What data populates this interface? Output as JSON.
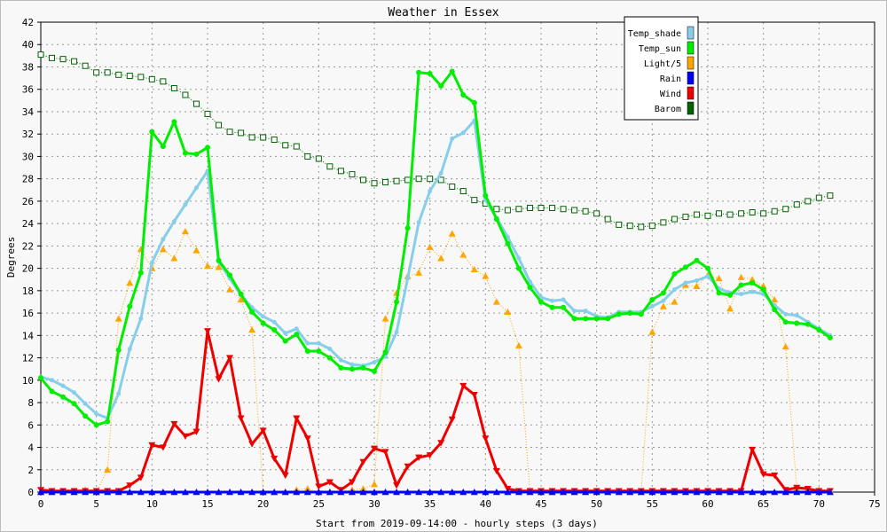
{
  "chart_data": {
    "type": "line",
    "title": "Weather in Essex",
    "xlabel": "Start from 2019-09-14:00 - hourly steps (3 days)",
    "ylabel": "Degrees",
    "xlim": [
      0,
      75
    ],
    "ylim": [
      0,
      42
    ],
    "x_ticks": [
      0,
      5,
      10,
      15,
      20,
      25,
      30,
      35,
      40,
      45,
      50,
      55,
      60,
      65,
      70,
      75
    ],
    "y_ticks": [
      0,
      2,
      4,
      6,
      8,
      10,
      12,
      14,
      16,
      18,
      20,
      22,
      24,
      26,
      28,
      30,
      32,
      34,
      36,
      38,
      40,
      42
    ],
    "grid": true,
    "legend_position": "top-right",
    "x": [
      0,
      1,
      2,
      3,
      4,
      5,
      6,
      7,
      8,
      9,
      10,
      11,
      12,
      13,
      14,
      15,
      16,
      17,
      18,
      19,
      20,
      21,
      22,
      23,
      24,
      25,
      26,
      27,
      28,
      29,
      30,
      31,
      32,
      33,
      34,
      35,
      36,
      37,
      38,
      39,
      40,
      41,
      42,
      43,
      44,
      45,
      46,
      47,
      48,
      49,
      50,
      51,
      52,
      53,
      54,
      55,
      56,
      57,
      58,
      59,
      60,
      61,
      62,
      63,
      64,
      65,
      66,
      67,
      68,
      69,
      70,
      71
    ],
    "series": [
      {
        "name": "Temp_shade",
        "color": "#87ceeb",
        "values": [
          10.3,
          10.0,
          9.5,
          8.9,
          7.9,
          7.0,
          6.6,
          8.8,
          12.8,
          15.5,
          20.5,
          22.6,
          24.2,
          25.7,
          27.2,
          28.7,
          20.6,
          19.1,
          17.6,
          16.5,
          15.7,
          15.2,
          14.2,
          14.6,
          13.3,
          13.3,
          12.8,
          11.8,
          11.4,
          11.3,
          11.6,
          12.1,
          14.3,
          19.1,
          24.1,
          26.9,
          28.5,
          31.6,
          32.1,
          33.2,
          26.1,
          24.5,
          22.8,
          20.9,
          18.8,
          17.4,
          17.1,
          17.2,
          16.2,
          16.2,
          15.7,
          15.6,
          16.1,
          16.1,
          16.1,
          16.6,
          17.1,
          18.1,
          18.7,
          18.9,
          19.3,
          18.2,
          17.8,
          17.7,
          17.9,
          17.7,
          16.7,
          15.9,
          15.8,
          15.2,
          14.6,
          14.0
        ]
      },
      {
        "name": "Temp_sun",
        "color": "#00ee00",
        "values": [
          10.2,
          9.0,
          8.5,
          7.9,
          6.8,
          6.0,
          6.3,
          12.7,
          16.6,
          19.6,
          32.2,
          30.9,
          33.1,
          30.3,
          30.2,
          30.8,
          20.7,
          19.4,
          17.7,
          16.1,
          15.1,
          14.5,
          13.5,
          14.1,
          12.6,
          12.6,
          12.0,
          11.1,
          11.0,
          11.1,
          10.8,
          12.5,
          17.0,
          23.6,
          37.5,
          37.4,
          36.3,
          37.6,
          35.5,
          34.8,
          26.5,
          24.4,
          22.2,
          20.0,
          18.3,
          17.0,
          16.5,
          16.5,
          15.5,
          15.5,
          15.5,
          15.5,
          15.9,
          16.0,
          15.9,
          17.2,
          17.8,
          19.5,
          20.1,
          20.7,
          20.0,
          17.8,
          17.6,
          18.5,
          18.7,
          18.1,
          16.3,
          15.2,
          15.1,
          15.0,
          14.5,
          13.8
        ]
      },
      {
        "name": "Light/5",
        "color": "#ffa500",
        "values": [
          0,
          0,
          0,
          0,
          0.2,
          0,
          2.0,
          15.5,
          18.7,
          21.7,
          20.0,
          21.7,
          20.9,
          23.3,
          21.6,
          20.2,
          20.1,
          18.1,
          17.2,
          14.5,
          0,
          0,
          0,
          0.2,
          0.3,
          0,
          0,
          0,
          0.2,
          0.3,
          0.7,
          15.5,
          17.8,
          19.3,
          19.6,
          21.9,
          20.9,
          23.1,
          21.2,
          19.9,
          19.3,
          17.0,
          16.1,
          13.1,
          0,
          0,
          0,
          0,
          0,
          0,
          0,
          0,
          0,
          0,
          0,
          14.3,
          16.6,
          17.0,
          18.5,
          18.4,
          19.4,
          19.1,
          16.4,
          19.2,
          19.0,
          18.4,
          17.2,
          13.0,
          0.3,
          0.2,
          0.2,
          0.1
        ]
      },
      {
        "name": "Rain",
        "color": "#0000ff",
        "values": [
          0,
          0,
          0,
          0,
          0,
          0,
          0,
          0,
          0,
          0,
          0,
          0,
          0,
          0,
          0,
          0,
          0,
          0,
          0,
          0,
          0,
          0,
          0,
          0,
          0,
          0,
          0,
          0,
          0,
          0,
          0,
          0,
          0,
          0,
          0,
          0,
          0,
          0,
          0,
          0,
          0,
          0,
          0,
          0,
          0,
          0,
          0,
          0,
          0,
          0,
          0,
          0,
          0,
          0,
          0,
          0,
          0,
          0,
          0,
          0,
          0,
          0,
          0,
          0,
          0,
          0,
          0,
          0,
          0,
          0,
          0,
          0
        ]
      },
      {
        "name": "Wind",
        "color": "#ee0000",
        "values": [
          0.2,
          0.1,
          0.1,
          0.1,
          0.1,
          0.1,
          0.1,
          0.1,
          0.6,
          1.3,
          4.2,
          4.0,
          6.1,
          5.0,
          5.4,
          14.4,
          10.1,
          12.0,
          6.6,
          4.3,
          5.5,
          3.0,
          1.5,
          6.6,
          4.8,
          0.5,
          0.9,
          0.2,
          0.9,
          2.7,
          3.9,
          3.6,
          0.6,
          2.3,
          3.1,
          3.3,
          4.4,
          6.5,
          9.5,
          8.7,
          4.8,
          1.9,
          0.3,
          0.1,
          0.1,
          0.1,
          0.1,
          0.1,
          0.1,
          0.1,
          0.1,
          0.1,
          0.1,
          0.1,
          0.1,
          0.1,
          0.1,
          0.1,
          0.1,
          0.1,
          0.1,
          0.1,
          0.1,
          0.1,
          3.8,
          1.6,
          1.5,
          0.2,
          0.4,
          0.3,
          0.1,
          0.1
        ]
      },
      {
        "name": "Barom",
        "color": "#006400",
        "values": [
          39.1,
          38.8,
          38.7,
          38.5,
          38.1,
          37.5,
          37.5,
          37.3,
          37.2,
          37.1,
          36.9,
          36.7,
          36.1,
          35.5,
          34.7,
          33.8,
          32.8,
          32.2,
          32.1,
          31.7,
          31.7,
          31.5,
          31.0,
          30.9,
          30.0,
          29.8,
          29.1,
          28.7,
          28.4,
          27.9,
          27.6,
          27.7,
          27.8,
          27.9,
          28.0,
          28.0,
          27.9,
          27.3,
          26.9,
          26.1,
          25.8,
          25.3,
          25.2,
          25.3,
          25.4,
          25.4,
          25.4,
          25.3,
          25.2,
          25.1,
          24.9,
          24.4,
          23.9,
          23.8,
          23.7,
          23.8,
          24.1,
          24.4,
          24.6,
          24.8,
          24.7,
          24.9,
          24.8,
          24.9,
          25.0,
          24.9,
          25.1,
          25.3,
          25.7,
          26.0,
          26.3,
          26.5
        ]
      }
    ]
  }
}
